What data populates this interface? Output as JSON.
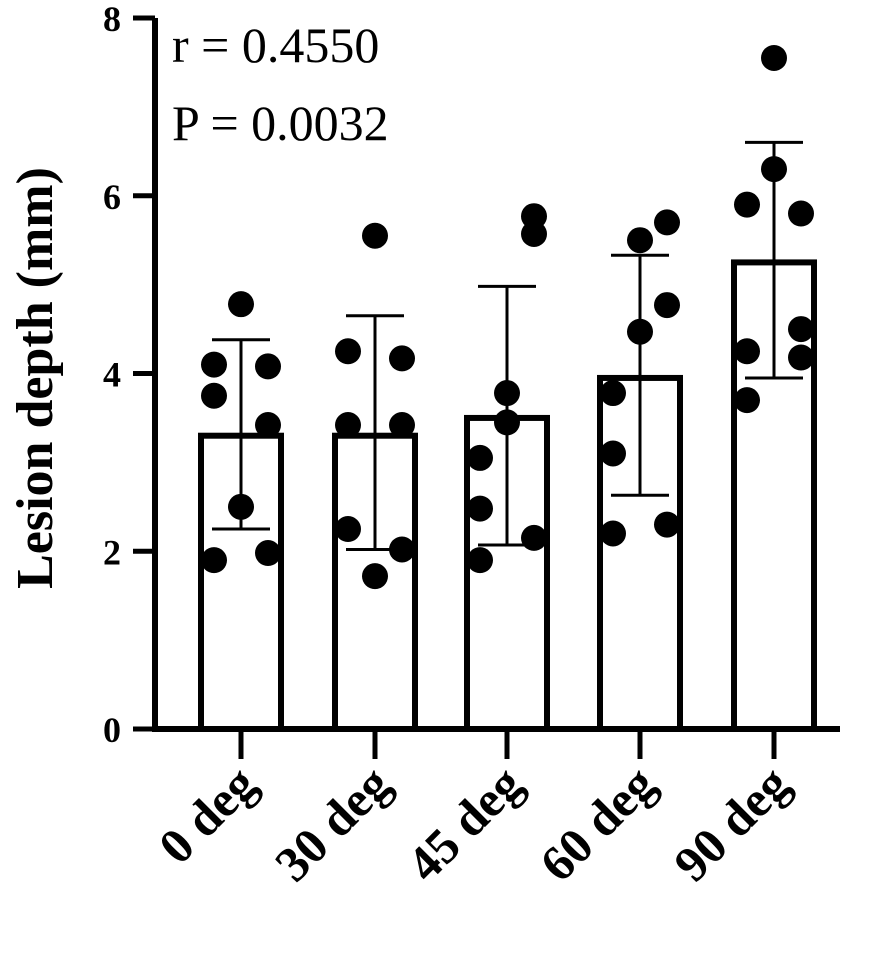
{
  "chart_data": {
    "type": "bar",
    "ylabel": "Lesion depth (mm)",
    "xlabel": "",
    "ylim": [
      0,
      8
    ],
    "yticks": [
      "0",
      "2",
      "4",
      "6",
      "8"
    ],
    "categories": [
      "0 deg",
      "30 deg",
      "45 deg",
      "60 deg",
      "90 deg"
    ],
    "values": [
      3.3,
      3.3,
      3.5,
      3.95,
      5.25
    ],
    "error_bars": [
      {
        "low": 2.25,
        "high": 4.38
      },
      {
        "low": 2.02,
        "high": 4.65
      },
      {
        "low": 2.07,
        "high": 4.98
      },
      {
        "low": 2.63,
        "high": 5.33
      },
      {
        "low": 3.95,
        "high": 6.6
      }
    ],
    "points": [
      [
        1.9,
        3.75,
        4.1,
        2.5,
        4.78,
        4.08,
        3.42,
        1.98
      ],
      [
        2.25,
        3.42,
        4.25,
        1.72,
        5.55,
        4.17,
        3.42,
        2.02
      ],
      [
        1.9,
        2.48,
        3.05,
        3.45,
        3.78,
        5.57,
        5.77,
        2.15
      ],
      [
        2.2,
        3.1,
        3.78,
        4.47,
        5.5,
        5.7,
        4.77,
        2.3
      ],
      [
        3.7,
        4.25,
        5.9,
        6.3,
        7.55,
        5.8,
        4.5,
        4.18
      ]
    ],
    "annotations": [
      "r = 0.4550",
      "P = 0.0032"
    ],
    "grid": false,
    "legend": "none"
  }
}
